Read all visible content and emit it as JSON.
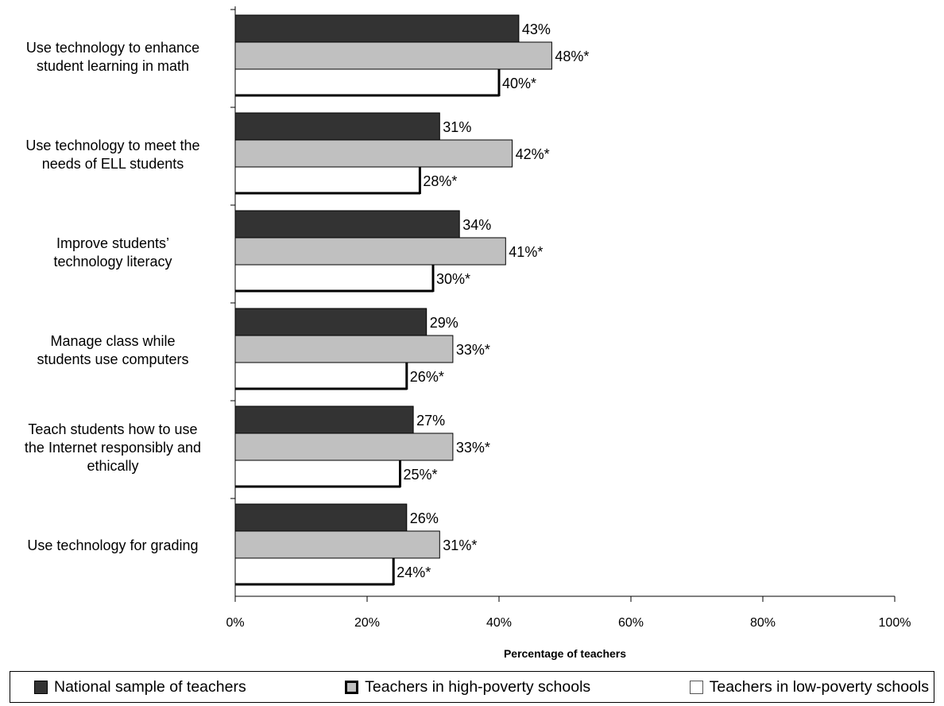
{
  "chart_data": {
    "type": "bar",
    "orientation": "horizontal",
    "categories": [
      [
        "Use technology to enhance",
        "student learning in math"
      ],
      [
        "Use technology to meet the",
        "needs of ELL students"
      ],
      [
        "Improve students’",
        "technology literacy"
      ],
      [
        "Manage class while",
        "students use computers"
      ],
      [
        "Teach students how to use",
        "the Internet responsibly and",
        "ethically"
      ],
      [
        "Use technology for grading"
      ]
    ],
    "series": [
      {
        "name": "National sample of teachers",
        "color": "#333333",
        "values": [
          43,
          31,
          34,
          29,
          27,
          26
        ],
        "labels": [
          "43%",
          "31%",
          "34%",
          "29%",
          "27%",
          "26%"
        ]
      },
      {
        "name": "Teachers in high-poverty schools",
        "color": "#c0c0c0",
        "values": [
          48,
          42,
          41,
          33,
          33,
          31
        ],
        "labels": [
          "48%*",
          "42%*",
          "41%*",
          "33%*",
          "33%*",
          "31%*"
        ]
      },
      {
        "name": "Teachers in low-poverty schools",
        "color": "#ffffff",
        "values": [
          40,
          28,
          30,
          26,
          25,
          24
        ],
        "labels": [
          "40%*",
          "28%*",
          "30%*",
          "26%*",
          "25%*",
          "24%*"
        ]
      }
    ],
    "xlabel": "Percentage of teachers",
    "xlim": [
      0,
      100
    ],
    "xticks": [
      "0%",
      "20%",
      "40%",
      "60%",
      "80%",
      "100%"
    ],
    "grid": false,
    "legend_position": "bottom"
  }
}
